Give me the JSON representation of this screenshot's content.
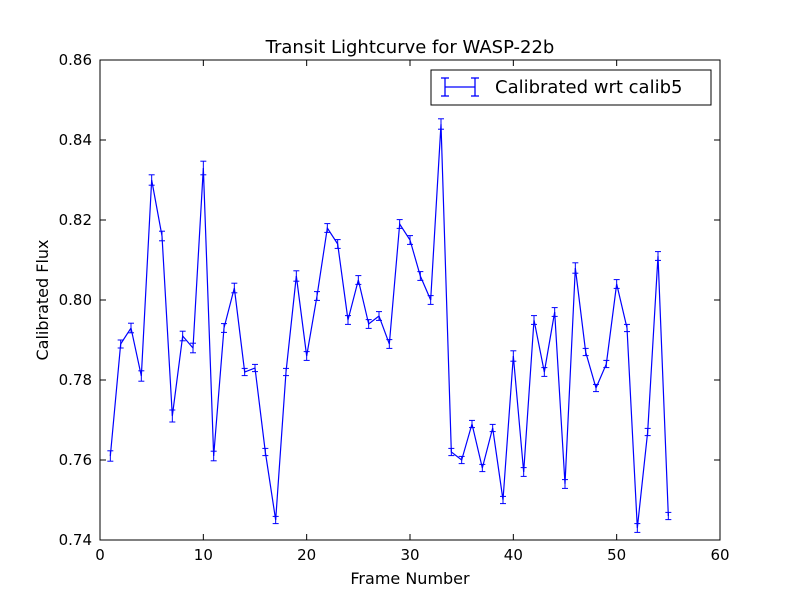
{
  "chart_data": {
    "type": "line",
    "title": "Transit Lightcurve for WASP-22b",
    "xlabel": "Frame Number",
    "ylabel": "Calibrated Flux",
    "xlim": [
      0,
      60
    ],
    "ylim": [
      0.74,
      0.86
    ],
    "xticks": [
      0,
      10,
      20,
      30,
      40,
      50,
      60
    ],
    "xtick_labels": [
      "0",
      "10",
      "20",
      "30",
      "40",
      "50",
      "60"
    ],
    "yticks": [
      0.74,
      0.76,
      0.78,
      0.8,
      0.82,
      0.84,
      0.86
    ],
    "ytick_labels": [
      "0.74",
      "0.76",
      "0.78",
      "0.80",
      "0.82",
      "0.84",
      "0.86"
    ],
    "grid": false,
    "legend_position": "top-right",
    "series": [
      {
        "name": "Calibrated wrt calib5",
        "color": "#0000ff",
        "x": [
          1,
          2,
          3,
          4,
          5,
          6,
          7,
          8,
          9,
          10,
          11,
          12,
          13,
          14,
          15,
          16,
          17,
          18,
          19,
          20,
          21,
          22,
          23,
          24,
          25,
          26,
          27,
          28,
          29,
          30,
          31,
          32,
          33,
          34,
          35,
          36,
          37,
          38,
          39,
          40,
          41,
          42,
          43,
          44,
          45,
          46,
          47,
          48,
          49,
          50,
          51,
          52,
          53,
          54,
          55
        ],
        "y": [
          0.761,
          0.789,
          0.793,
          0.781,
          0.83,
          0.816,
          0.771,
          0.791,
          0.788,
          0.833,
          0.761,
          0.793,
          0.803,
          0.782,
          0.783,
          0.762,
          0.745,
          0.782,
          0.806,
          0.786,
          0.801,
          0.818,
          0.814,
          0.795,
          0.805,
          0.794,
          0.796,
          0.789,
          0.819,
          0.815,
          0.806,
          0.8,
          0.844,
          0.762,
          0.76,
          0.769,
          0.758,
          0.768,
          0.75,
          0.786,
          0.757,
          0.795,
          0.782,
          0.797,
          0.754,
          0.808,
          0.787,
          0.778,
          0.784,
          0.804,
          0.793,
          0.743,
          0.767,
          0.811,
          0.746
        ],
        "yerr": [
          0.0013,
          0.001,
          0.0012,
          0.0013,
          0.0013,
          0.0012,
          0.0015,
          0.0012,
          0.0012,
          0.0017,
          0.0012,
          0.0011,
          0.0012,
          0.0009,
          0.0009,
          0.0009,
          0.0009,
          0.0009,
          0.0013,
          0.0011,
          0.0011,
          0.0011,
          0.0011,
          0.0011,
          0.0011,
          0.0011,
          0.0011,
          0.0011,
          0.0011,
          0.0011,
          0.0011,
          0.0011,
          0.0013,
          0.0009,
          0.0009,
          0.0009,
          0.0009,
          0.0009,
          0.0009,
          0.0013,
          0.0011,
          0.0011,
          0.0011,
          0.0011,
          0.0011,
          0.0013,
          0.0009,
          0.0009,
          0.0009,
          0.0011,
          0.0009,
          0.0011,
          0.0009,
          0.0011,
          0.0009
        ]
      }
    ]
  }
}
